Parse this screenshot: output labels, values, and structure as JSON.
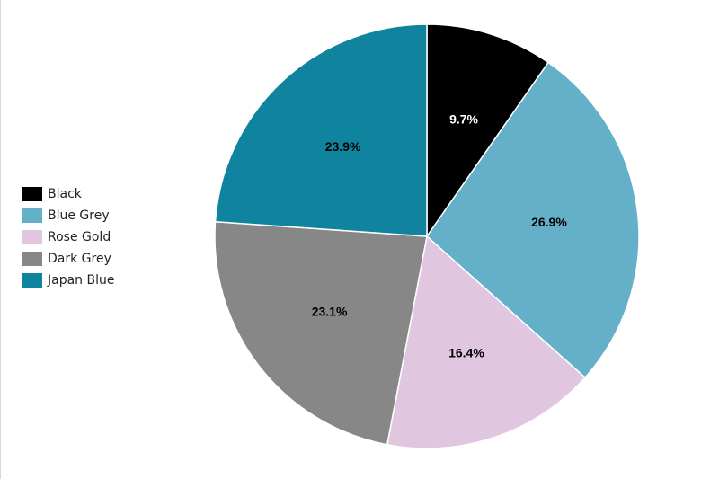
{
  "chart_data": {
    "type": "pie",
    "categories": [
      "Black",
      "Blue Grey",
      "Rose Gold",
      "Dark Grey",
      "Japan Blue"
    ],
    "values": [
      9.7,
      26.9,
      16.4,
      23.1,
      23.9
    ],
    "data_labels": [
      "9.7%",
      "26.9%",
      "16.4%",
      "23.1%",
      "23.9%"
    ],
    "colors": [
      "#000000",
      "#64b0c8",
      "#e0c6df",
      "#878787",
      "#10849e"
    ],
    "label_colors": [
      "#ffffff",
      "#000000",
      "#000000",
      "#000000",
      "#000000"
    ],
    "legend_position": "left",
    "start_angle": "12 o'clock",
    "direction": "clockwise"
  }
}
